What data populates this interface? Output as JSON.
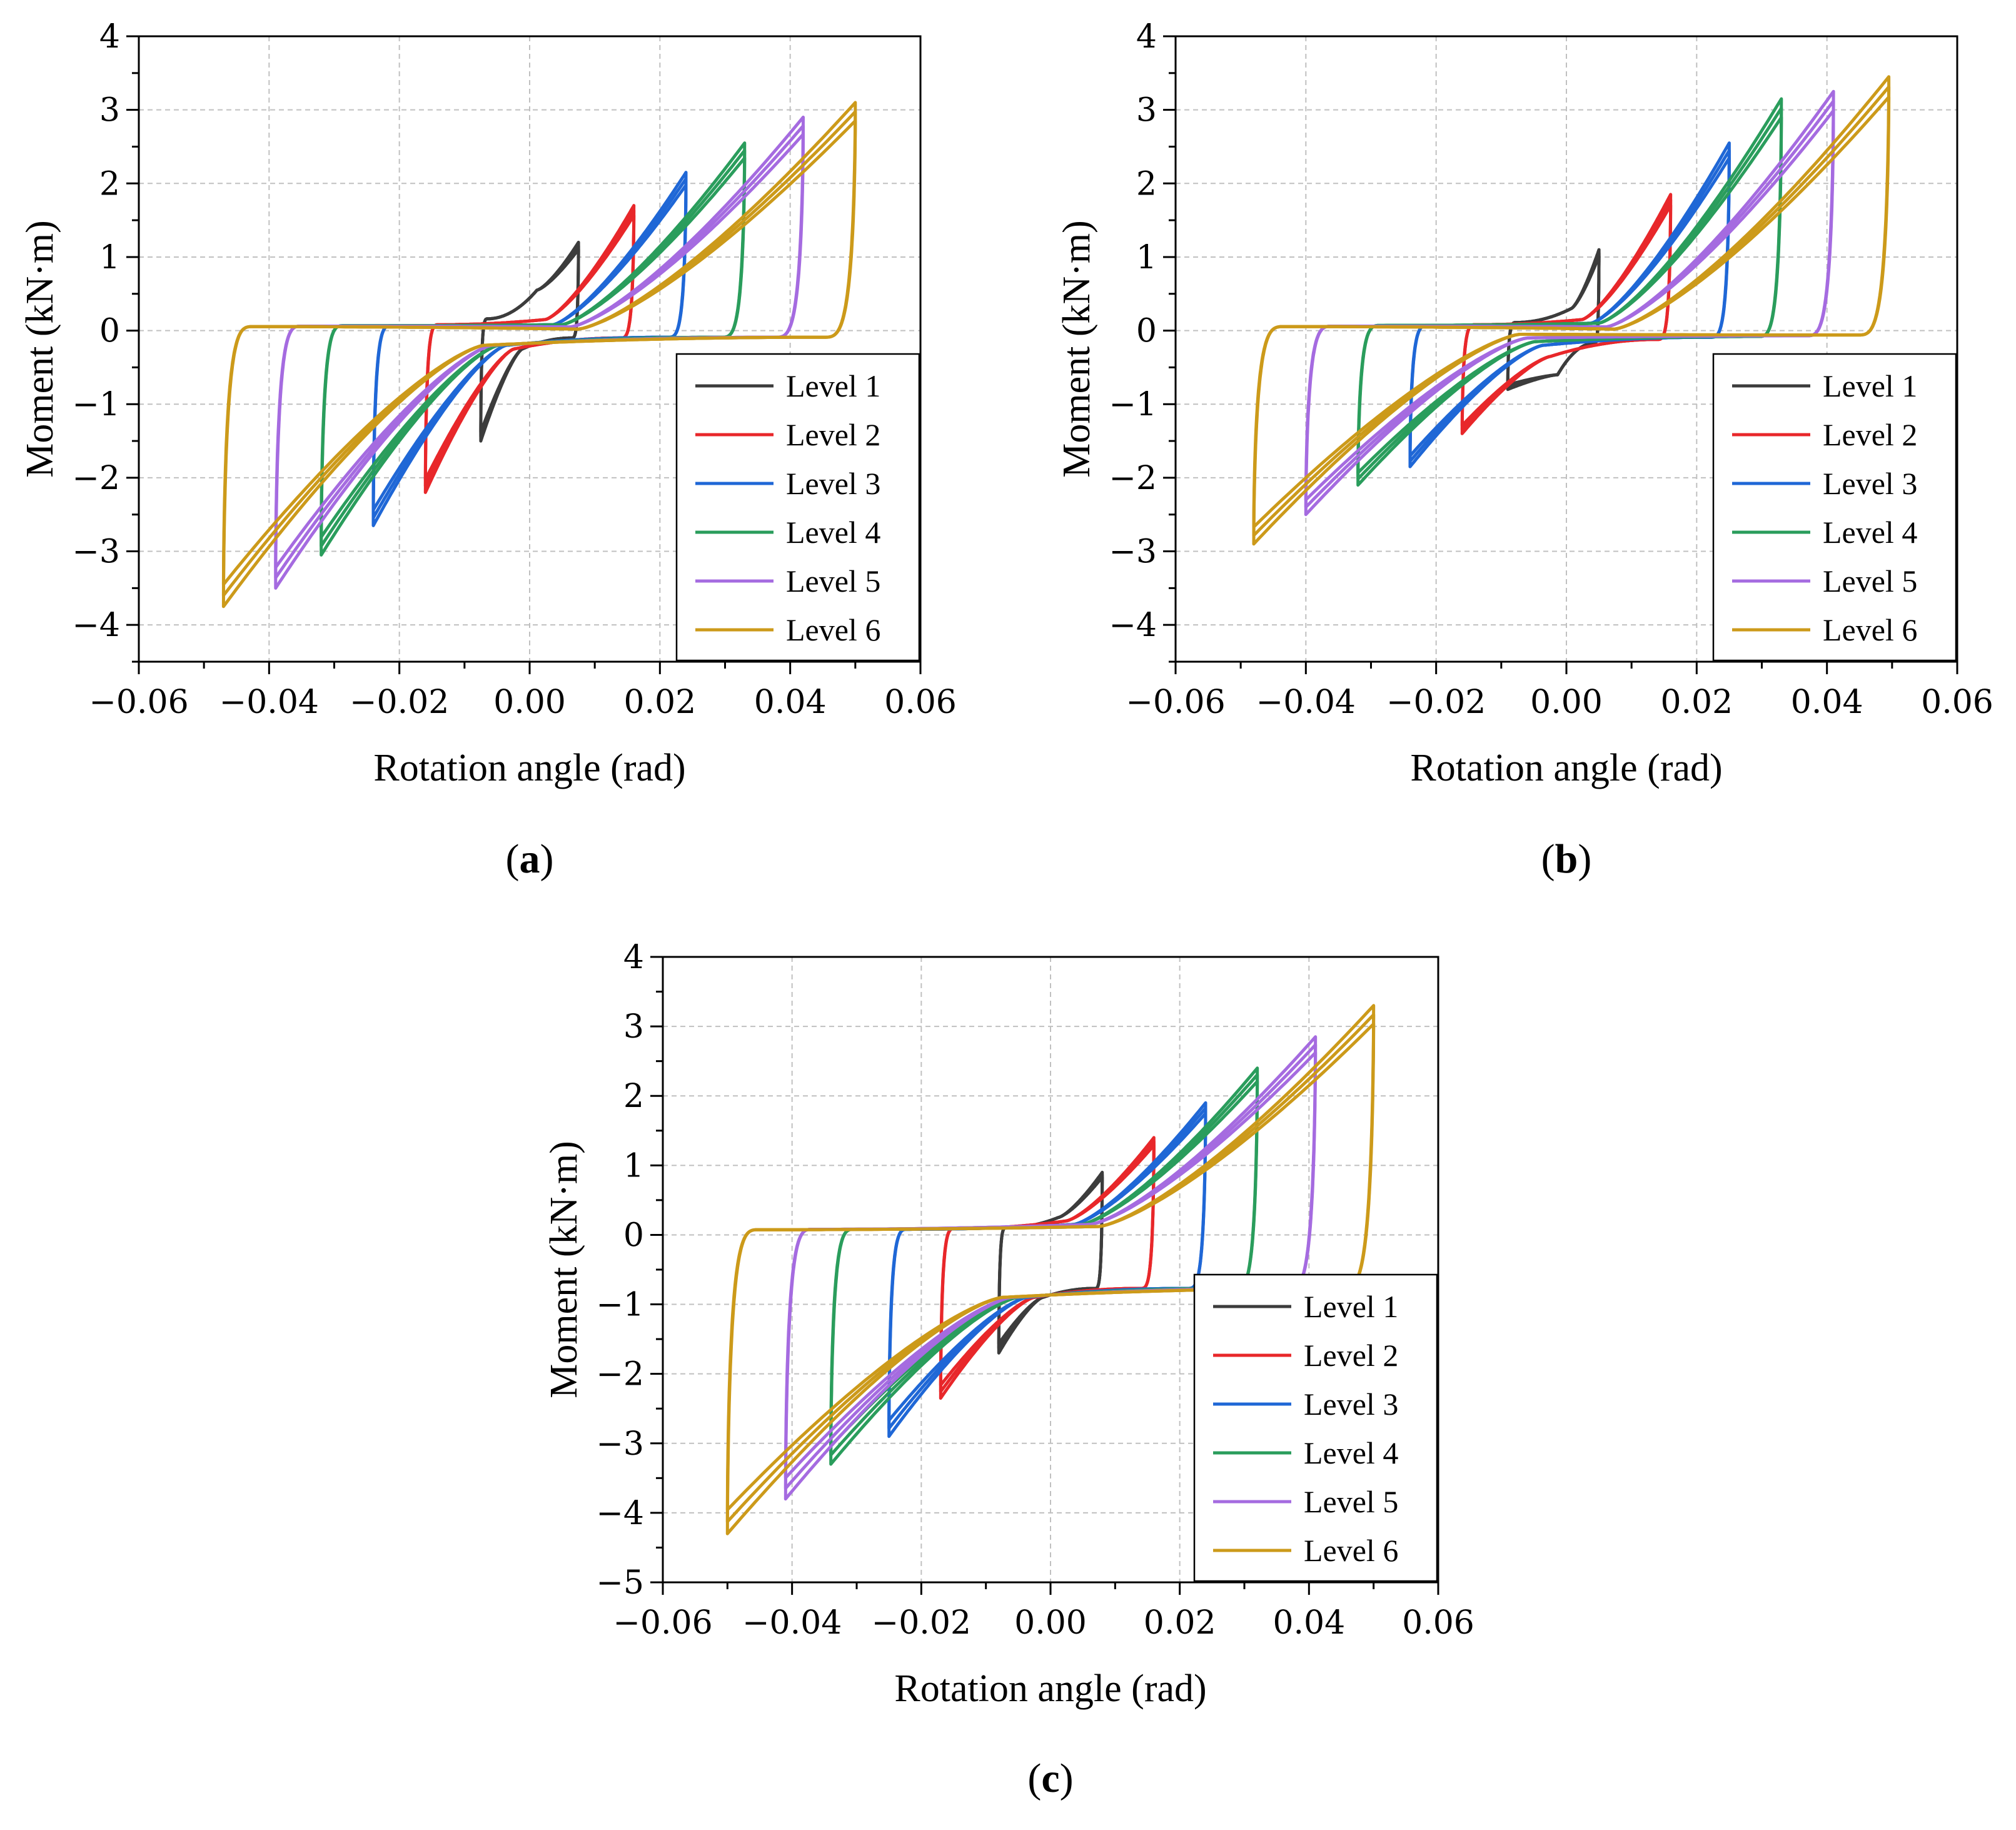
{
  "figure": {
    "description_labels": [
      "(a)",
      "(b)",
      "(c)"
    ]
  },
  "colors": {
    "Level 1": "#3c3c3c",
    "Level 2": "#e8272a",
    "Level 3": "#1f67d6",
    "Level 4": "#2a9d5c",
    "Level 5": "#a56be0",
    "Level 6": "#cc9a1a",
    "grid": "#c0c0c0",
    "axis": "#000000"
  },
  "chart_data": [
    {
      "type": "line",
      "panel_label": "(a)",
      "xlabel": "Rotation angle (rad)",
      "ylabel": "Moment (kN·m)",
      "xlim": [
        -0.06,
        0.06
      ],
      "ylim": [
        -4.5,
        4
      ],
      "xticks": [
        -0.06,
        -0.04,
        -0.02,
        0.0,
        0.02,
        0.04,
        0.06
      ],
      "xtick_labels": [
        "−0.06",
        "−0.04",
        "−0.02",
        "0.00",
        "0.02",
        "0.04",
        "0.06"
      ],
      "yticks": [
        -4,
        -3,
        -2,
        -1,
        0,
        1,
        2,
        3,
        4
      ],
      "ytick_labels": [
        "−4",
        "−3",
        "−2",
        "−1",
        "0",
        "1",
        "2",
        "3",
        "4"
      ],
      "grid": true,
      "legend_position": "lower-right",
      "series": [
        {
          "name": "Level 1",
          "amp_pos": 0.0075,
          "amp_neg": -0.0075,
          "peak_pos": 1.2,
          "peak_neg": -1.5,
          "pos_residual": 0.55,
          "neg_residual": -0.25,
          "pinch": 0.55
        },
        {
          "name": "Level 2",
          "amp_pos": 0.016,
          "amp_neg": -0.016,
          "peak_pos": 1.7,
          "peak_neg": -2.2,
          "pos_residual": 0.15,
          "neg_residual": -0.25,
          "pinch": 0.5
        },
        {
          "name": "Level 3",
          "amp_pos": 0.024,
          "amp_neg": -0.024,
          "peak_pos": 2.15,
          "peak_neg": -2.65,
          "pos_residual": 0.08,
          "neg_residual": -0.2,
          "pinch": 0.45
        },
        {
          "name": "Level 4",
          "amp_pos": 0.033,
          "amp_neg": -0.032,
          "peak_pos": 2.55,
          "peak_neg": -3.05,
          "pos_residual": 0.08,
          "neg_residual": -0.2,
          "pinch": 0.42
        },
        {
          "name": "Level 5",
          "amp_pos": 0.042,
          "amp_neg": -0.039,
          "peak_pos": 2.9,
          "peak_neg": -3.5,
          "pos_residual": 0.05,
          "neg_residual": -0.2,
          "pinch": 0.4
        },
        {
          "name": "Level 6",
          "amp_pos": 0.05,
          "amp_neg": -0.047,
          "peak_pos": 3.1,
          "peak_neg": -3.75,
          "pos_residual": 0.02,
          "neg_residual": -0.2,
          "pinch": 0.38
        }
      ]
    },
    {
      "type": "line",
      "panel_label": "(b)",
      "xlabel": "Rotation angle (rad)",
      "ylabel": "Moment (kN·m)",
      "xlim": [
        -0.06,
        0.06
      ],
      "ylim": [
        -4.5,
        4
      ],
      "xticks": [
        -0.06,
        -0.04,
        -0.02,
        0.0,
        0.02,
        0.04,
        0.06
      ],
      "xtick_labels": [
        "−0.06",
        "−0.04",
        "−0.02",
        "0.00",
        "0.02",
        "0.04",
        "0.06"
      ],
      "yticks": [
        -4,
        -3,
        -2,
        -1,
        0,
        1,
        2,
        3,
        4
      ],
      "ytick_labels": [
        "−4",
        "−3",
        "−2",
        "−1",
        "0",
        "1",
        "2",
        "3",
        "4"
      ],
      "grid": true,
      "legend_position": "lower-right",
      "series": [
        {
          "name": "Level 1",
          "amp_pos": 0.005,
          "amp_neg": -0.009,
          "peak_pos": 1.1,
          "peak_neg": -0.8,
          "pos_residual": 0.3,
          "neg_residual": -0.6,
          "pinch": 0.55
        },
        {
          "name": "Level 2",
          "amp_pos": 0.016,
          "amp_neg": -0.016,
          "peak_pos": 1.85,
          "peak_neg": -1.4,
          "pos_residual": 0.15,
          "neg_residual": -0.35,
          "pinch": 0.5
        },
        {
          "name": "Level 3",
          "amp_pos": 0.025,
          "amp_neg": -0.024,
          "peak_pos": 2.55,
          "peak_neg": -1.85,
          "pos_residual": 0.1,
          "neg_residual": -0.2,
          "pinch": 0.45
        },
        {
          "name": "Level 4",
          "amp_pos": 0.033,
          "amp_neg": -0.032,
          "peak_pos": 3.15,
          "peak_neg": -2.1,
          "pos_residual": 0.1,
          "neg_residual": -0.15,
          "pinch": 0.42
        },
        {
          "name": "Level 5",
          "amp_pos": 0.041,
          "amp_neg": -0.04,
          "peak_pos": 3.25,
          "peak_neg": -2.5,
          "pos_residual": 0.05,
          "neg_residual": -0.1,
          "pinch": 0.4
        },
        {
          "name": "Level 6",
          "amp_pos": 0.0495,
          "amp_neg": -0.048,
          "peak_pos": 3.45,
          "peak_neg": -2.9,
          "pos_residual": 0.02,
          "neg_residual": -0.05,
          "pinch": 0.38
        }
      ]
    },
    {
      "type": "line",
      "panel_label": "(c)",
      "xlabel": "Rotation angle (rad)",
      "ylabel": "Moment (kN·m)",
      "xlim": [
        -0.06,
        0.06
      ],
      "ylim": [
        -5,
        4
      ],
      "xticks": [
        -0.06,
        -0.04,
        -0.02,
        0.0,
        0.02,
        0.04,
        0.06
      ],
      "xtick_labels": [
        "−0.06",
        "−0.04",
        "−0.02",
        "0.00",
        "0.02",
        "0.04",
        "0.06"
      ],
      "yticks": [
        -5,
        -4,
        -3,
        -2,
        -1,
        0,
        1,
        2,
        3,
        4
      ],
      "ytick_labels": [
        "−5",
        "−4",
        "−3",
        "−2",
        "−1",
        "0",
        "1",
        "2",
        "3",
        "4"
      ],
      "grid": true,
      "legend_position": "lower-right",
      "series": [
        {
          "name": "Level 1",
          "amp_pos": 0.008,
          "amp_neg": -0.008,
          "peak_pos": 0.9,
          "peak_neg": -1.7,
          "pos_residual": 0.25,
          "neg_residual": -0.9,
          "pinch": 0.55
        },
        {
          "name": "Level 2",
          "amp_pos": 0.016,
          "amp_neg": -0.017,
          "peak_pos": 1.4,
          "peak_neg": -2.35,
          "pos_residual": 0.2,
          "neg_residual": -0.9,
          "pinch": 0.5
        },
        {
          "name": "Level 3",
          "amp_pos": 0.024,
          "amp_neg": -0.025,
          "peak_pos": 1.9,
          "peak_neg": -2.9,
          "pos_residual": 0.15,
          "neg_residual": -0.9,
          "pinch": 0.45
        },
        {
          "name": "Level 4",
          "amp_pos": 0.032,
          "amp_neg": -0.034,
          "peak_pos": 2.4,
          "peak_neg": -3.3,
          "pos_residual": 0.15,
          "neg_residual": -0.9,
          "pinch": 0.42
        },
        {
          "name": "Level 5",
          "amp_pos": 0.041,
          "amp_neg": -0.041,
          "peak_pos": 2.85,
          "peak_neg": -3.8,
          "pos_residual": 0.15,
          "neg_residual": -0.9,
          "pinch": 0.4
        },
        {
          "name": "Level 6",
          "amp_pos": 0.05,
          "amp_neg": -0.05,
          "peak_pos": 3.3,
          "peak_neg": -4.3,
          "pos_residual": 0.12,
          "neg_residual": -0.9,
          "pinch": 0.38
        }
      ]
    }
  ]
}
